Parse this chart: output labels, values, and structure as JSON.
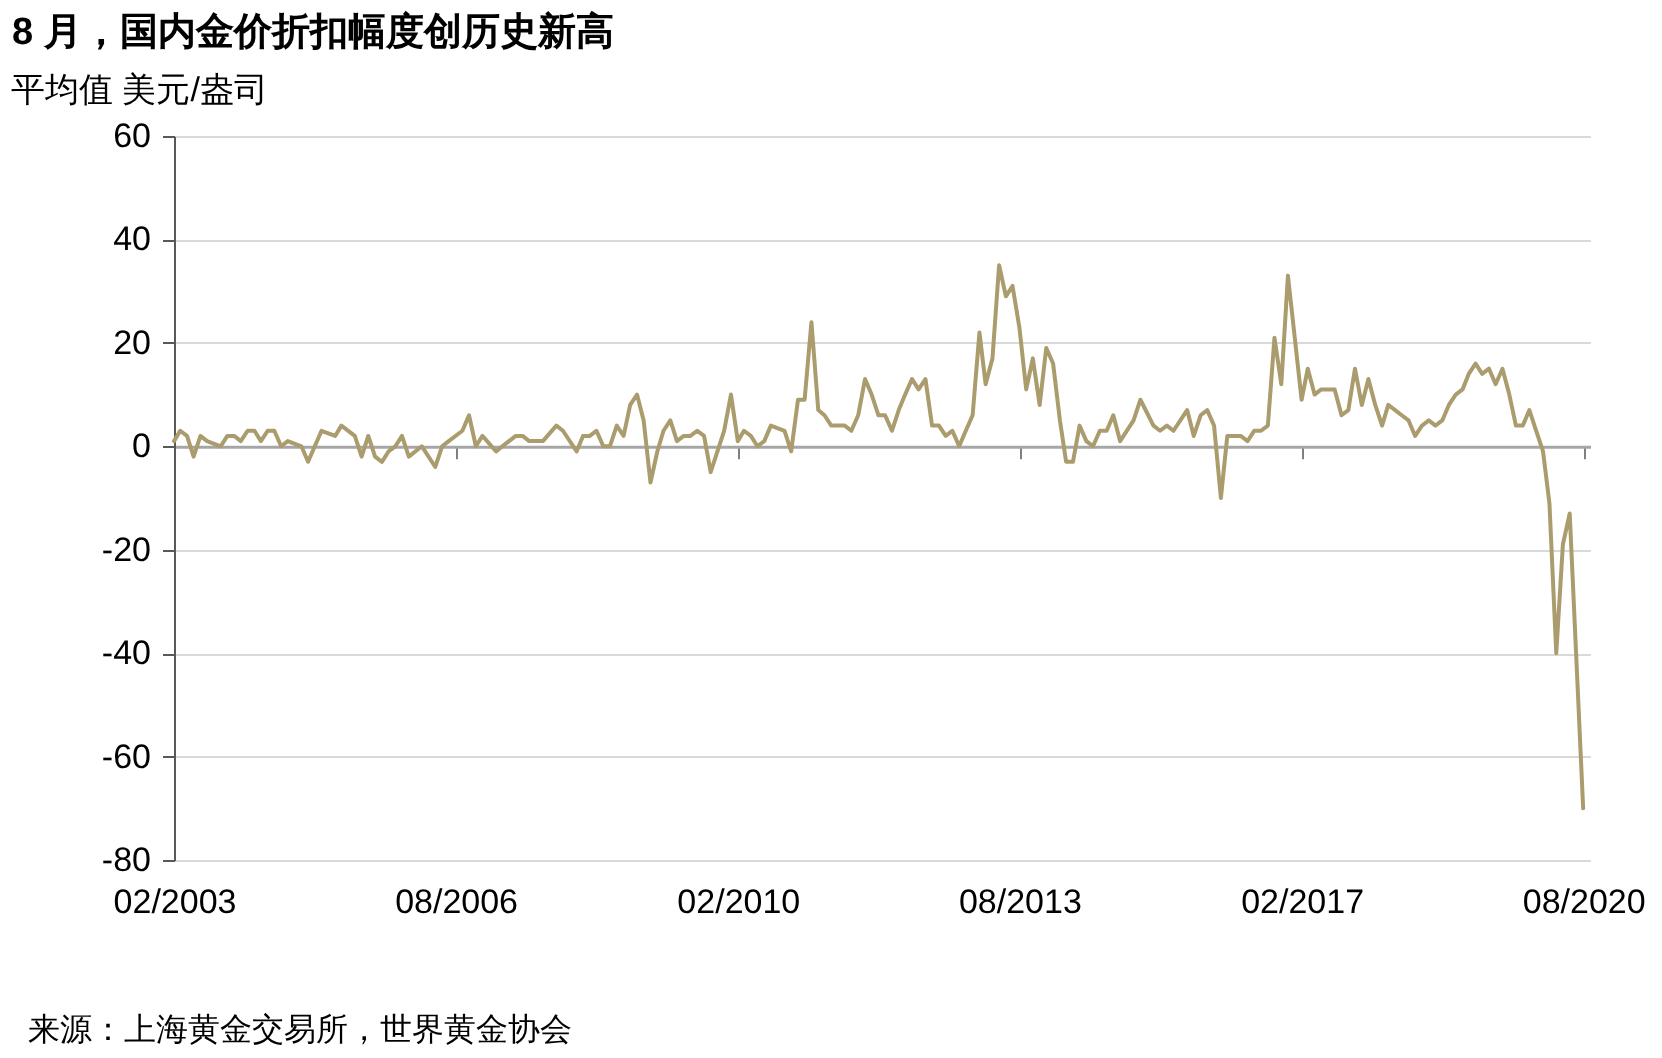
{
  "chart_data": {
    "type": "line",
    "title": "8 月，国内金价折扣幅度创历史新高",
    "ylabel": "平均值 美元/盎司",
    "annotations": [
      "来源：上海黄金交易所，世界黄金协会"
    ],
    "x": [
      "2003-02",
      "2003-03",
      "2003-04",
      "2003-05",
      "2003-06",
      "2003-07",
      "2003-09",
      "2003-10",
      "2003-11",
      "2003-12",
      "2004-01",
      "2004-02",
      "2004-03",
      "2004-04",
      "2004-05",
      "2004-06",
      "2004-07",
      "2004-09",
      "2004-10",
      "2004-12",
      "2005-02",
      "2005-03",
      "2005-05",
      "2005-06",
      "2005-07",
      "2005-08",
      "2005-09",
      "2005-10",
      "2005-11",
      "2005-12",
      "2006-01",
      "2006-03",
      "2006-05",
      "2006-06",
      "2006-07",
      "2006-09",
      "2006-10",
      "2006-11",
      "2006-12",
      "2007-02",
      "2007-03",
      "2007-05",
      "2007-06",
      "2007-07",
      "2007-08",
      "2007-09",
      "2007-11",
      "2007-12",
      "2008-02",
      "2008-03",
      "2008-04",
      "2008-05",
      "2008-06",
      "2008-07",
      "2008-08",
      "2008-09",
      "2008-10",
      "2008-11",
      "2008-12",
      "2009-01",
      "2009-02",
      "2009-03",
      "2009-04",
      "2009-05",
      "2009-06",
      "2009-07",
      "2009-08",
      "2009-09",
      "2009-10",
      "2009-12",
      "2010-01",
      "2010-02",
      "2010-03",
      "2010-04",
      "2010-05",
      "2010-06",
      "2010-07",
      "2010-09",
      "2010-10",
      "2010-11",
      "2010-12",
      "2011-01",
      "2011-02",
      "2011-03",
      "2011-04",
      "2011-05",
      "2011-06",
      "2011-07",
      "2011-08",
      "2011-09",
      "2011-10",
      "2011-11",
      "2011-12",
      "2012-01",
      "2012-02",
      "2012-03",
      "2012-04",
      "2012-05",
      "2012-06",
      "2012-07",
      "2012-08",
      "2012-09",
      "2012-10",
      "2012-11",
      "2012-12",
      "2013-01",
      "2013-02",
      "2013-03",
      "2013-04",
      "2013-05",
      "2013-06",
      "2013-07",
      "2013-08",
      "2013-09",
      "2013-10",
      "2013-11",
      "2013-12",
      "2014-01",
      "2014-02",
      "2014-03",
      "2014-04",
      "2014-05",
      "2014-06",
      "2014-07",
      "2014-08",
      "2014-09",
      "2014-10",
      "2014-11",
      "2015-01",
      "2015-02",
      "2015-04",
      "2015-05",
      "2015-06",
      "2015-07",
      "2015-08",
      "2015-09",
      "2015-10",
      "2015-11",
      "2015-12",
      "2016-01",
      "2016-02",
      "2016-03",
      "2016-04",
      "2016-05",
      "2016-06",
      "2016-07",
      "2016-08",
      "2016-09",
      "2016-10",
      "2016-11",
      "2016-12",
      "2017-02",
      "2017-03",
      "2017-04",
      "2017-05",
      "2017-06",
      "2017-07",
      "2017-08",
      "2017-09",
      "2017-10",
      "2017-11",
      "2017-12",
      "2018-01",
      "2018-02",
      "2018-03",
      "2018-04",
      "2018-05",
      "2018-06",
      "2018-07",
      "2018-08",
      "2018-09",
      "2018-10",
      "2018-11",
      "2018-12",
      "2019-01",
      "2019-02",
      "2019-03",
      "2019-04",
      "2019-05",
      "2019-06",
      "2019-07",
      "2019-08",
      "2019-09",
      "2019-10",
      "2019-11",
      "2019-12",
      "2020-01",
      "2020-02",
      "2020-03",
      "2020-04",
      "2020-05",
      "2020-06",
      "2020-07",
      "2020-08"
    ],
    "series": [
      {
        "color": "#ab9c6e",
        "values": [
          1,
          3,
          2,
          -2,
          2,
          1,
          0,
          2,
          2,
          1,
          3,
          3,
          1,
          3,
          3,
          0,
          1,
          0,
          -3,
          3,
          2,
          4,
          2,
          -2,
          2,
          -2,
          -3,
          -1,
          0,
          2,
          -2,
          0,
          -4,
          0,
          1,
          3,
          6,
          0,
          2,
          -1,
          0,
          2,
          2,
          1,
          1,
          1,
          4,
          3,
          -1,
          2,
          2,
          3,
          0,
          0,
          4,
          2,
          8,
          10,
          5,
          -7,
          -1,
          3,
          5,
          1,
          2,
          2,
          3,
          2,
          -5,
          3,
          10,
          1,
          3,
          2,
          0,
          1,
          4,
          3,
          -1,
          9,
          9,
          24,
          7,
          6,
          4,
          4,
          4,
          3,
          6,
          13,
          10,
          6,
          6,
          3,
          7,
          10,
          13,
          11,
          13,
          4,
          4,
          2,
          3,
          0,
          3,
          6,
          22,
          12,
          17,
          35,
          29,
          31,
          23,
          11,
          17,
          8,
          19,
          16,
          5,
          -3,
          -3,
          4,
          1,
          0,
          3,
          3,
          6,
          1,
          5,
          9,
          4,
          3,
          4,
          3,
          5,
          7,
          2,
          6,
          7,
          4,
          -10,
          2,
          2,
          2,
          1,
          3,
          3,
          4,
          21,
          12,
          33,
          9,
          15,
          10,
          11,
          11,
          11,
          6,
          7,
          15,
          8,
          13,
          8,
          4,
          8,
          7,
          6,
          5,
          2,
          4,
          5,
          4,
          5,
          8,
          10,
          11,
          14,
          16,
          14,
          15,
          12,
          15,
          10,
          4,
          4,
          7,
          3,
          -1,
          -11,
          -40,
          -19,
          -13,
          -41,
          -70
        ]
      }
    ],
    "xlim": [
      "2003-02",
      "2020-09"
    ],
    "xticks": [
      {
        "value": "2003-02",
        "label": "02/2003"
      },
      {
        "value": "2006-08",
        "label": "08/2006"
      },
      {
        "value": "2010-02",
        "label": "02/2010"
      },
      {
        "value": "2013-08",
        "label": "08/2013"
      },
      {
        "value": "2017-02",
        "label": "02/2017"
      },
      {
        "value": "2020-08",
        "label": "08/2020"
      }
    ],
    "ylim": [
      -80,
      60
    ],
    "yticks": [
      -80,
      -60,
      -40,
      -20,
      0,
      20,
      40,
      60
    ],
    "grid": "y"
  }
}
